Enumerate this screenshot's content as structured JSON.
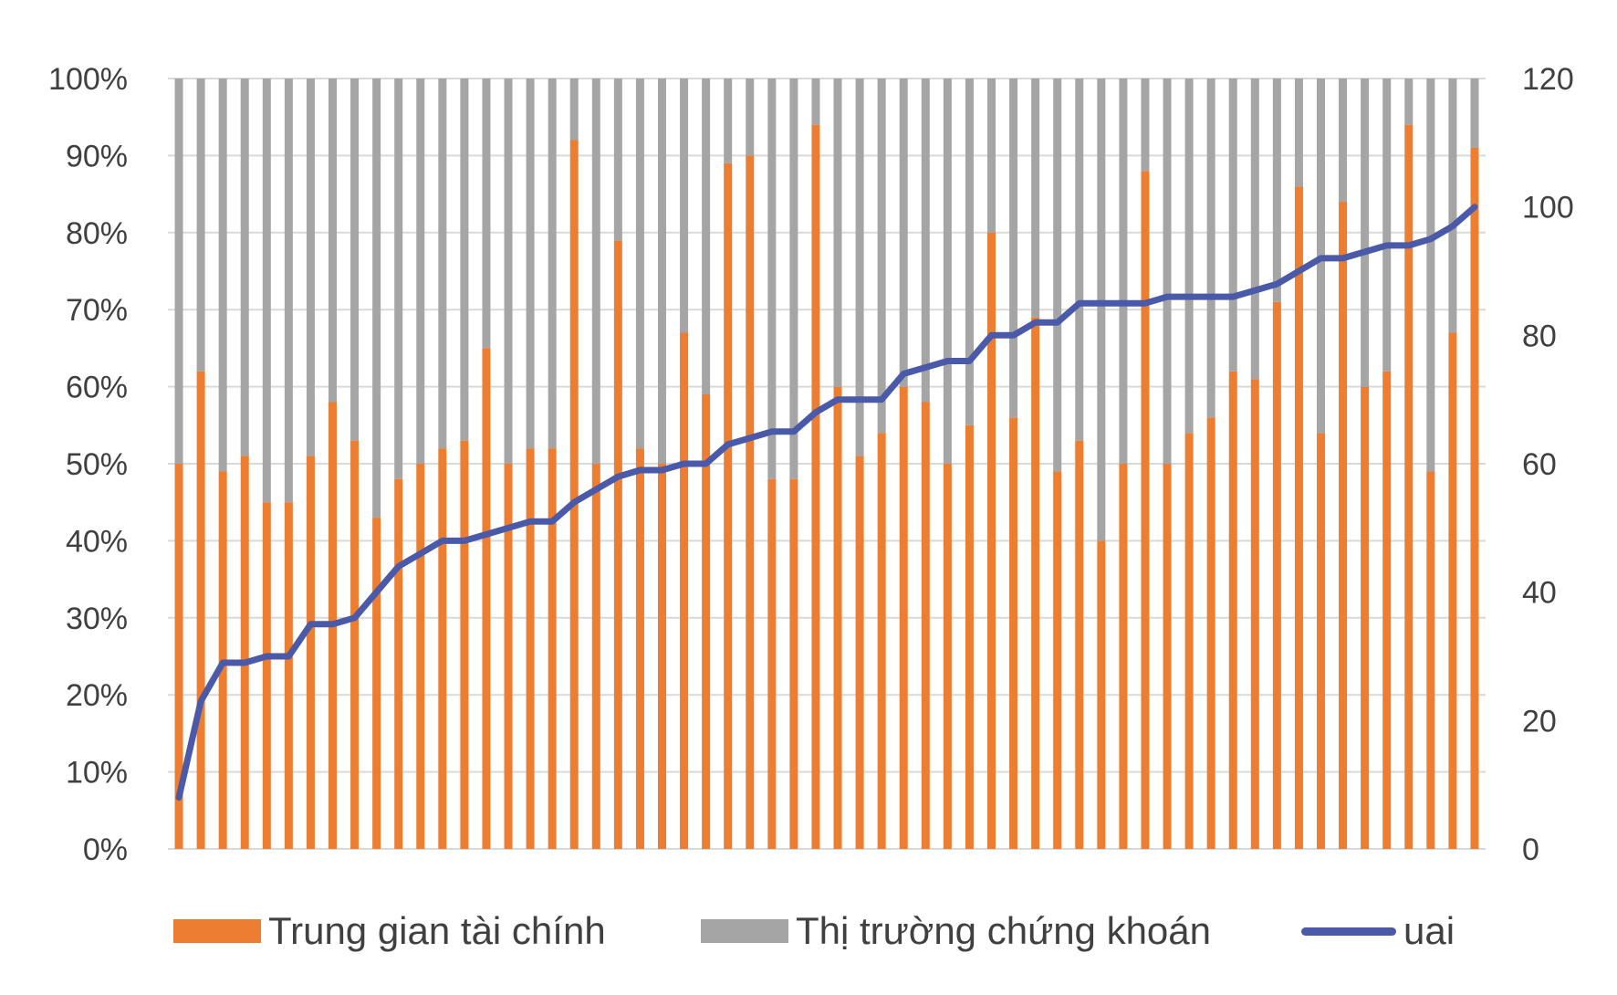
{
  "chart_data": {
    "type": "bar",
    "stacked_percent": true,
    "colors": {
      "financial_intermediation": "#ed7d31",
      "stock_market": "#a5a5a5",
      "uai": "#4a5aa8",
      "grid": "#d9d9d9"
    },
    "legend": {
      "position": "bottom",
      "financial_intermediation": "Trung gian tài chính",
      "stock_market": "Thị trường chứng khoán",
      "uai": "uai"
    },
    "y_left": {
      "range": [
        0,
        100
      ],
      "ticks": [
        "0%",
        "10%",
        "20%",
        "30%",
        "40%",
        "50%",
        "60%",
        "70%",
        "80%",
        "90%",
        "100%"
      ]
    },
    "y_right": {
      "range": [
        0,
        120
      ],
      "ticks": [
        "0",
        "20",
        "40",
        "60",
        "80",
        "100",
        "120"
      ]
    },
    "series": [
      {
        "name": "Trung gian tài chính",
        "axis": "left",
        "values": [
          50,
          62,
          49,
          51,
          45,
          45,
          51,
          58,
          53,
          43,
          48,
          50,
          52,
          53,
          65,
          50,
          52,
          52,
          92,
          50,
          79,
          52,
          50,
          67,
          59,
          89,
          90,
          48,
          48,
          94,
          60,
          51,
          54,
          60,
          58,
          50,
          55,
          80,
          56,
          69,
          49,
          53,
          40,
          50,
          88,
          50,
          54,
          56,
          62,
          61,
          71,
          86,
          54,
          84,
          60,
          62,
          94,
          49,
          67,
          91
        ]
      },
      {
        "name": "Thị trường chứng khoán",
        "axis": "left",
        "values": [
          50,
          38,
          51,
          49,
          55,
          55,
          49,
          42,
          47,
          57,
          52,
          50,
          48,
          47,
          35,
          50,
          48,
          48,
          8,
          50,
          21,
          48,
          50,
          33,
          41,
          11,
          10,
          52,
          52,
          6,
          40,
          49,
          46,
          40,
          42,
          50,
          45,
          20,
          44,
          31,
          51,
          47,
          60,
          50,
          12,
          50,
          46,
          44,
          38,
          39,
          29,
          14,
          46,
          16,
          40,
          38,
          6,
          51,
          33,
          9
        ]
      },
      {
        "name": "uai",
        "axis": "right",
        "type": "line",
        "values": [
          8,
          23,
          29,
          29,
          30,
          30,
          35,
          35,
          36,
          40,
          44,
          46,
          48,
          48,
          49,
          50,
          51,
          51,
          54,
          56,
          58,
          59,
          59,
          60,
          60,
          63,
          64,
          65,
          65,
          68,
          70,
          70,
          70,
          74,
          75,
          76,
          76,
          80,
          80,
          82,
          82,
          85,
          85,
          85,
          85,
          86,
          86,
          86,
          86,
          87,
          88,
          90,
          92,
          92,
          93,
          94,
          94,
          95,
          97,
          100
        ]
      }
    ]
  }
}
